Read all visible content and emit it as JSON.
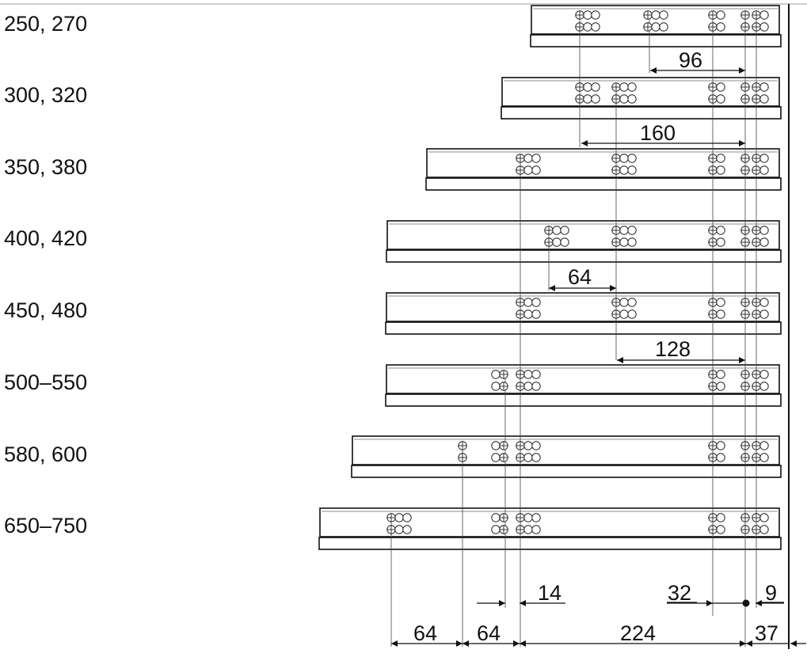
{
  "rows": [
    {
      "label": "250, 270"
    },
    {
      "label": "300, 320"
    },
    {
      "label": "350, 380"
    },
    {
      "label": "400, 420"
    },
    {
      "label": "450, 480"
    },
    {
      "label": "500–550"
    },
    {
      "label": "580, 600"
    },
    {
      "label": "650–750"
    }
  ],
  "dimensions": {
    "d96": "96",
    "d160": "160",
    "d64_mid": "64",
    "d128": "128",
    "d14": "14",
    "d32": "32",
    "d9": "9",
    "d64_a": "64",
    "d64_b": "64",
    "d224": "224",
    "d37": "37"
  }
}
